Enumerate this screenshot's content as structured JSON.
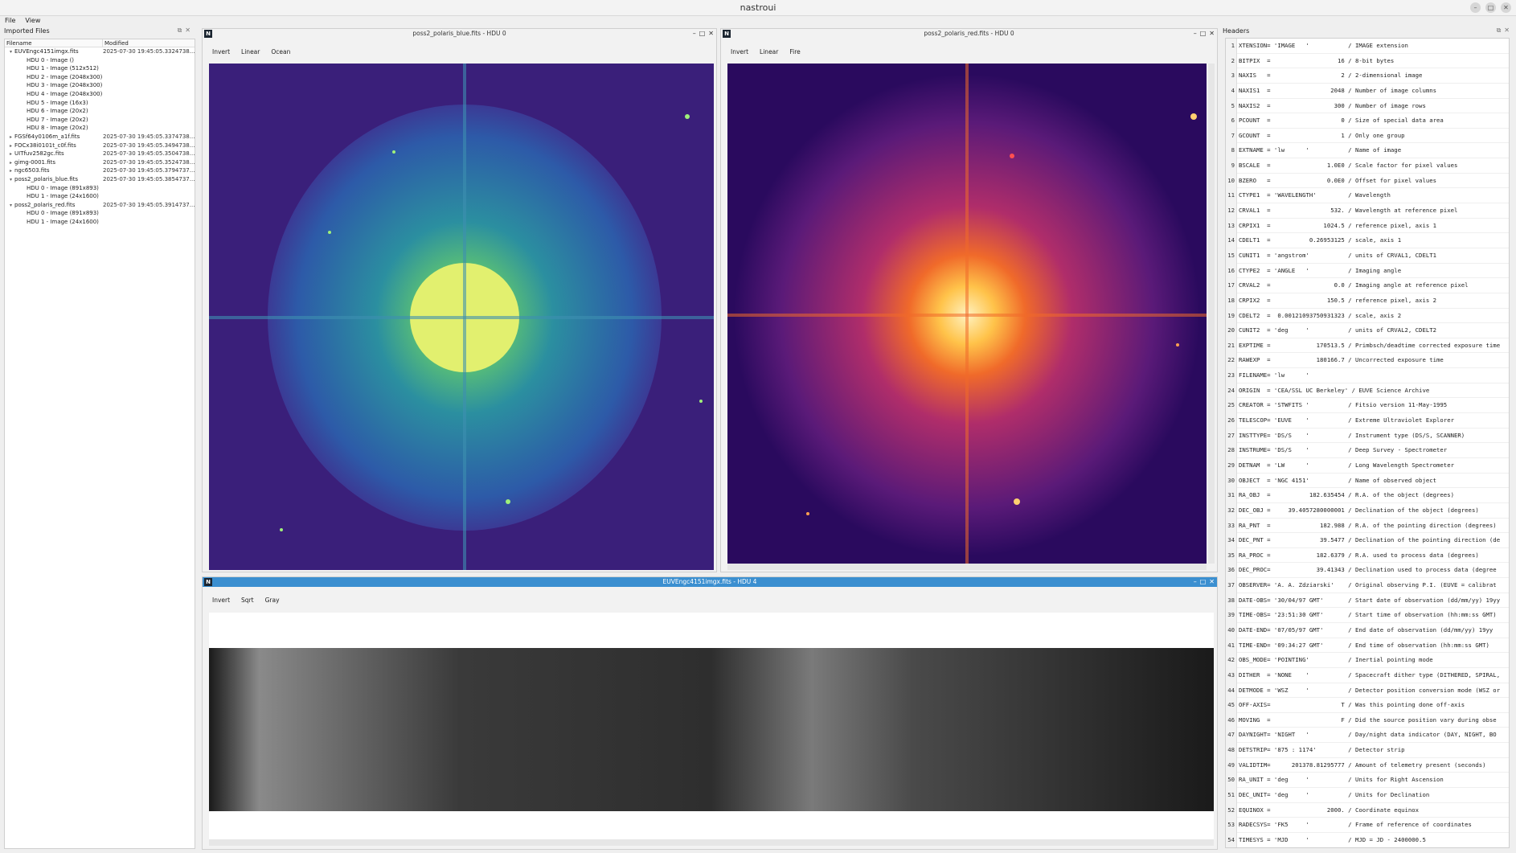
{
  "app": {
    "title": "nastroui"
  },
  "menu": [
    "File",
    "View"
  ],
  "left_panel": {
    "title": "Imported Files",
    "columns": [
      "Filename",
      "Modified"
    ],
    "rows": [
      {
        "indent": 0,
        "expanded": true,
        "name": "EUVEngc4151imgx.fits",
        "modified": "2025-07-30 19:45:05.3324738..."
      },
      {
        "indent": 1,
        "name": "HDU 0 - Image ()",
        "modified": ""
      },
      {
        "indent": 1,
        "name": "HDU 1 - Image (512x512)",
        "modified": ""
      },
      {
        "indent": 1,
        "name": "HDU 2 - Image (2048x300)",
        "modified": ""
      },
      {
        "indent": 1,
        "name": "HDU 3 - Image (2048x300)",
        "modified": ""
      },
      {
        "indent": 1,
        "name": "HDU 4 - Image (2048x300)",
        "modified": ""
      },
      {
        "indent": 1,
        "name": "HDU 5 - Image (16x3)",
        "modified": ""
      },
      {
        "indent": 1,
        "name": "HDU 6 - Image (20x2)",
        "modified": ""
      },
      {
        "indent": 1,
        "name": "HDU 7 - Image (20x2)",
        "modified": ""
      },
      {
        "indent": 1,
        "name": "HDU 8 - Image (20x2)",
        "modified": ""
      },
      {
        "indent": 0,
        "expanded": false,
        "name": "FGSf64y0106m_a1f.fits",
        "modified": "2025-07-30 19:45:05.3374738..."
      },
      {
        "indent": 0,
        "expanded": false,
        "name": "FOCx38i0101t_c0f.fits",
        "modified": "2025-07-30 19:45:05.3494738..."
      },
      {
        "indent": 0,
        "expanded": false,
        "name": "UITfuv2582gc.fits",
        "modified": "2025-07-30 19:45:05.3504738..."
      },
      {
        "indent": 0,
        "expanded": false,
        "name": "gimg-0001.fits",
        "modified": "2025-07-30 19:45:05.3524738..."
      },
      {
        "indent": 0,
        "expanded": false,
        "name": "ngc6503.fits",
        "modified": "2025-07-30 19:45:05.3794737..."
      },
      {
        "indent": 0,
        "expanded": true,
        "name": "poss2_polaris_blue.fits",
        "modified": "2025-07-30 19:45:05.3854737..."
      },
      {
        "indent": 1,
        "name": "HDU 0 - Image (891x893)",
        "modified": ""
      },
      {
        "indent": 1,
        "name": "HDU 1 - Image (24x1600)",
        "modified": ""
      },
      {
        "indent": 0,
        "expanded": true,
        "name": "poss2_polaris_red.fits",
        "modified": "2025-07-30 19:45:05.3914737..."
      },
      {
        "indent": 1,
        "name": "HDU 0 - Image (891x893)",
        "modified": ""
      },
      {
        "indent": 1,
        "name": "HDU 1 - Image (24x1600)",
        "modified": ""
      }
    ]
  },
  "windows": {
    "blue": {
      "title": "poss2_polaris_blue.fits - HDU 0",
      "toolbar": [
        "Invert",
        "Linear",
        "Ocean"
      ]
    },
    "red": {
      "title": "poss2_polaris_red.fits - HDU 0",
      "toolbar": [
        "Invert",
        "Linear",
        "Fire"
      ]
    },
    "euve": {
      "title": "EUVEngc4151imgx.fits - HDU 4",
      "toolbar": [
        "Invert",
        "Sqrt",
        "Gray"
      ]
    }
  },
  "headers_panel": {
    "title": "Headers",
    "lines": [
      "XTENSION= 'IMAGE   '           / IMAGE extension",
      "BITPIX  =                   16 / 8-bit bytes",
      "NAXIS   =                    2 / 2-dimensional image",
      "NAXIS1  =                 2048 / Number of image columns",
      "NAXIS2  =                  300 / Number of image rows",
      "PCOUNT  =                    0 / Size of special data area",
      "GCOUNT  =                    1 / Only one group",
      "EXTNAME = 'lw      '           / Name of image",
      "BSCALE  =                1.0E0 / Scale factor for pixel values",
      "BZERO   =                0.0E0 / Offset for pixel values",
      "CTYPE1  = 'WAVELENGTH'         / Wavelength",
      "CRVAL1  =                 532. / Wavelength at reference pixel",
      "CRPIX1  =               1024.5 / reference pixel, axis 1",
      "CDELT1  =           0.26953125 / scale, axis 1",
      "CUNIT1  = 'angstrom'           / units of CRVAL1, CDELT1",
      "CTYPE2  = 'ANGLE   '           / Imaging angle",
      "CRVAL2  =                  0.0 / Imaging angle at reference pixel",
      "CRPIX2  =                150.5 / reference pixel, axis 2",
      "CDELT2  =  0.00121093750931323 / scale, axis 2",
      "CUNIT2  = 'deg     '           / units of CRVAL2, CDELT2",
      "EXPTIME =             170513.5 / Primbsch/deadtime corrected exposure time",
      "RAWEXP  =             180166.7 / Uncorrected exposure time",
      "FILENAME= 'lw      '",
      "ORIGIN  = 'CEA/SSL UC Berkeley' / EUVE Science Archive",
      "CREATOR = 'STWFITS '           / Fitsio version 11-May-1995",
      "TELESCOP= 'EUVE    '           / Extreme Ultraviolet Explorer",
      "INSTTYPE= 'DS/S    '           / Instrument type (DS/S, SCANNER)",
      "INSTRUME= 'DS/S    '           / Deep Survey - Spectrometer",
      "DETNAM  = 'LW      '           / Long Wavelength Spectrometer",
      "OBJECT  = 'NGC 4151'           / Name of observed object",
      "RA_OBJ  =           182.635454 / R.A. of the object (degrees)",
      "DEC_OBJ =     39.4057280000001 / Declination of the object (degrees)",
      "RA_PNT  =              182.988 / R.A. of the pointing direction (degrees)",
      "DEC_PNT =              39.5477 / Declination of the pointing direction (de",
      "RA_PROC =             182.6379 / R.A. used to process data (degrees)",
      "DEC_PROC=             39.41343 / Declination used to process data (degree",
      "OBSERVER= 'A. A. Zdziarski'    / Original observing P.I. (EUVE = calibrat",
      "DATE-OBS= '30/04/97 GMT'       / Start date of observation (dd/mm/yy) 19yy",
      "TIME-OBS= '23:51:30 GMT'       / Start time of observation (hh:mm:ss GMT)",
      "DATE-END= '07/05/97 GMT'       / End date of observation (dd/mm/yy) 19yy",
      "TIME-END= '09:34:27 GMT'       / End time of observation (hh:mm:ss GMT)",
      "OBS_MODE= 'POINTING'           / Inertial pointing mode",
      "DITHER  = 'NONE    '           / Spacecraft dither type (DITHERED, SPIRAL,",
      "DETMODE = 'WSZ     '           / Detector position conversion mode (WSZ or",
      "OFF-AXIS=                    T / Was this pointing done off-axis",
      "MOVING  =                    F / Did the source position vary during obse",
      "DAYNIGHT= 'NIGHT   '           / Day/night data indicator (DAY, NIGHT, BO",
      "DETSTRIP= '875 : 1174'         / Detector strip",
      "VALIDTIM=      201378.81295777 / Amount of telemetry present (seconds)",
      "RA_UNIT = 'deg     '           / Units for Right Ascension",
      "DEC_UNIT= 'deg     '           / Units for Declination",
      "EQUINOX =                2000. / Coordinate equinox",
      "RADECSYS= 'FK5     '           / Frame of reference of coordinates",
      "TIMESYS = 'MJD     '           / MJD = JD - 2400000.5"
    ]
  },
  "colors": {
    "accent": "#3b8fd0",
    "ocean_bg": "#3a1f7a",
    "fire_bg": "#2a0a5e"
  }
}
